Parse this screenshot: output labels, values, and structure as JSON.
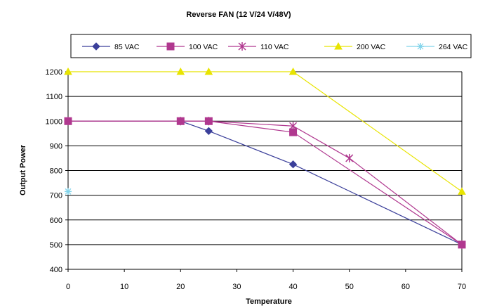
{
  "chart_data": {
    "type": "line",
    "title": "Reverse FAN (12 V/24 V/48V)",
    "xlabel": "Temperature",
    "ylabel": "Output Power",
    "xlim": [
      0,
      70
    ],
    "ylim": [
      400,
      1200
    ],
    "xticks": [
      "0",
      "10",
      "20",
      "30",
      "40",
      "50",
      "60",
      "70"
    ],
    "yticks": [
      "400",
      "500",
      "600",
      "700",
      "800",
      "900",
      "1000",
      "1100",
      "1200"
    ],
    "grid": "horizontal",
    "legend_position": "top",
    "series": [
      {
        "name": "85 VAC",
        "color": "#3b3f9a",
        "marker": "diamond",
        "points": [
          [
            0,
            1000
          ],
          [
            20,
            1000
          ],
          [
            25,
            960
          ],
          [
            40,
            825
          ],
          [
            70,
            500
          ]
        ]
      },
      {
        "name": "100 VAC",
        "color": "#b0388f",
        "marker": "square",
        "points": [
          [
            0,
            1000
          ],
          [
            20,
            1000
          ],
          [
            25,
            1000
          ],
          [
            40,
            955
          ],
          [
            70,
            500
          ]
        ]
      },
      {
        "name": "110 VAC",
        "color": "#b0388f",
        "marker": "cross",
        "points": [
          [
            0,
            1000
          ],
          [
            20,
            1000
          ],
          [
            25,
            1000
          ],
          [
            40,
            980
          ],
          [
            50,
            850
          ],
          [
            70,
            500
          ]
        ]
      },
      {
        "name": "200 VAC",
        "color": "#e8e400",
        "marker": "triangle",
        "points": [
          [
            0,
            1200
          ],
          [
            20,
            1200
          ],
          [
            25,
            1200
          ],
          [
            40,
            1200
          ],
          [
            70,
            715
          ]
        ]
      },
      {
        "name": "264 VAC",
        "color": "#7fd3ea",
        "marker": "star",
        "points": [
          [
            0,
            715
          ]
        ]
      }
    ]
  }
}
